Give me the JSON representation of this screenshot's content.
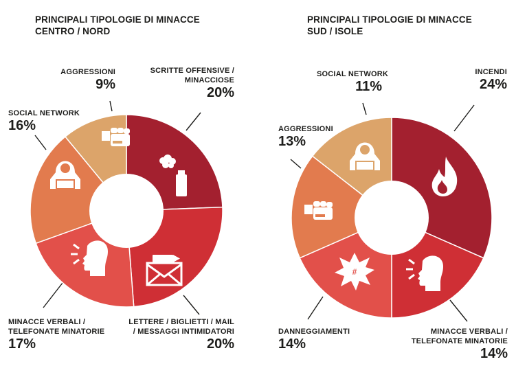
{
  "colors": {
    "dark_red": "#a3202f",
    "red": "#cf2f35",
    "coral": "#e2504a",
    "orange": "#e27b4e",
    "tan": "#dca46a",
    "icon": "#ffffff",
    "center": "#ffffff"
  },
  "chart_data": [
    {
      "type": "pie",
      "title_lines": [
        "PRINCIPALI TIPOLOGIE DI MINACCE",
        "CENTRO / NORD"
      ],
      "donut": true,
      "slices": [
        {
          "label_lines": [
            "SCRITTE OFFENSIVE /",
            "MINACCIOSE"
          ],
          "value": 20,
          "value_label": "20%",
          "color": "#a3202f",
          "icon": "spray-can-icon"
        },
        {
          "label_lines": [
            "LETTERE / BIGLIETTI / MAIL",
            "/ MESSAGGI INTIMIDATORI"
          ],
          "value": 20,
          "value_label": "20%",
          "color": "#cf2f35",
          "icon": "envelope-bullet-icon"
        },
        {
          "label_lines": [
            "MINACCE VERBALI /",
            "TELEFONATE MINATORIE"
          ],
          "value": 17,
          "value_label": "17%",
          "color": "#e2504a",
          "icon": "shouting-head-icon"
        },
        {
          "label_lines": [
            "SOCIAL NETWORK"
          ],
          "value": 16,
          "value_label": "16%",
          "color": "#e27b4e",
          "icon": "hacker-laptop-icon"
        },
        {
          "label_lines": [
            "AGGRESSIONI"
          ],
          "value": 9,
          "value_label": "9%",
          "color": "#dca46a",
          "icon": "fist-icon"
        }
      ]
    },
    {
      "type": "pie",
      "title_lines": [
        "PRINCIPALI TIPOLOGIE DI MINACCE",
        "SUD / ISOLE"
      ],
      "donut": true,
      "slices": [
        {
          "label_lines": [
            "INCENDI"
          ],
          "value": 24,
          "value_label": "24%",
          "color": "#a3202f",
          "icon": "fire-icon"
        },
        {
          "label_lines": [
            "MINACCE VERBALI /",
            "TELEFONATE MINATORIE"
          ],
          "value": 14,
          "value_label": "14%",
          "color": "#cf2f35",
          "icon": "shouting-head-icon"
        },
        {
          "label_lines": [
            "DANNEGGIAMENTI"
          ],
          "value": 14,
          "value_label": "14%",
          "color": "#e2504a",
          "icon": "explosion-icon"
        },
        {
          "label_lines": [
            "AGGRESSIONI"
          ],
          "value": 13,
          "value_label": "13%",
          "color": "#e27b4e",
          "icon": "fist-icon"
        },
        {
          "label_lines": [
            "SOCIAL NETWORK"
          ],
          "value": 11,
          "value_label": "11%",
          "color": "#dca46a",
          "icon": "hacker-laptop-icon"
        }
      ]
    }
  ]
}
